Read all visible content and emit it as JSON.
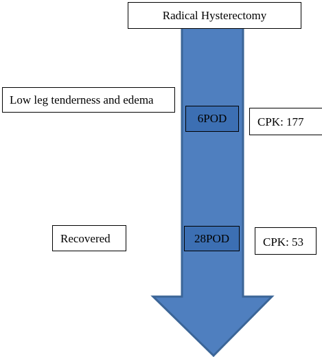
{
  "title": "Radical Hysterectomy",
  "timeline": [
    {
      "day": "6POD",
      "finding": "Low leg tenderness and edema",
      "lab": "CPK: 177"
    },
    {
      "day": "28POD",
      "finding": "Recovered",
      "lab": "CPK: 53"
    }
  ],
  "colors": {
    "arrow_fill": "#4f7fbf",
    "arrow_stroke": "#3b6597",
    "pod_fill": "#3c6fb3"
  }
}
